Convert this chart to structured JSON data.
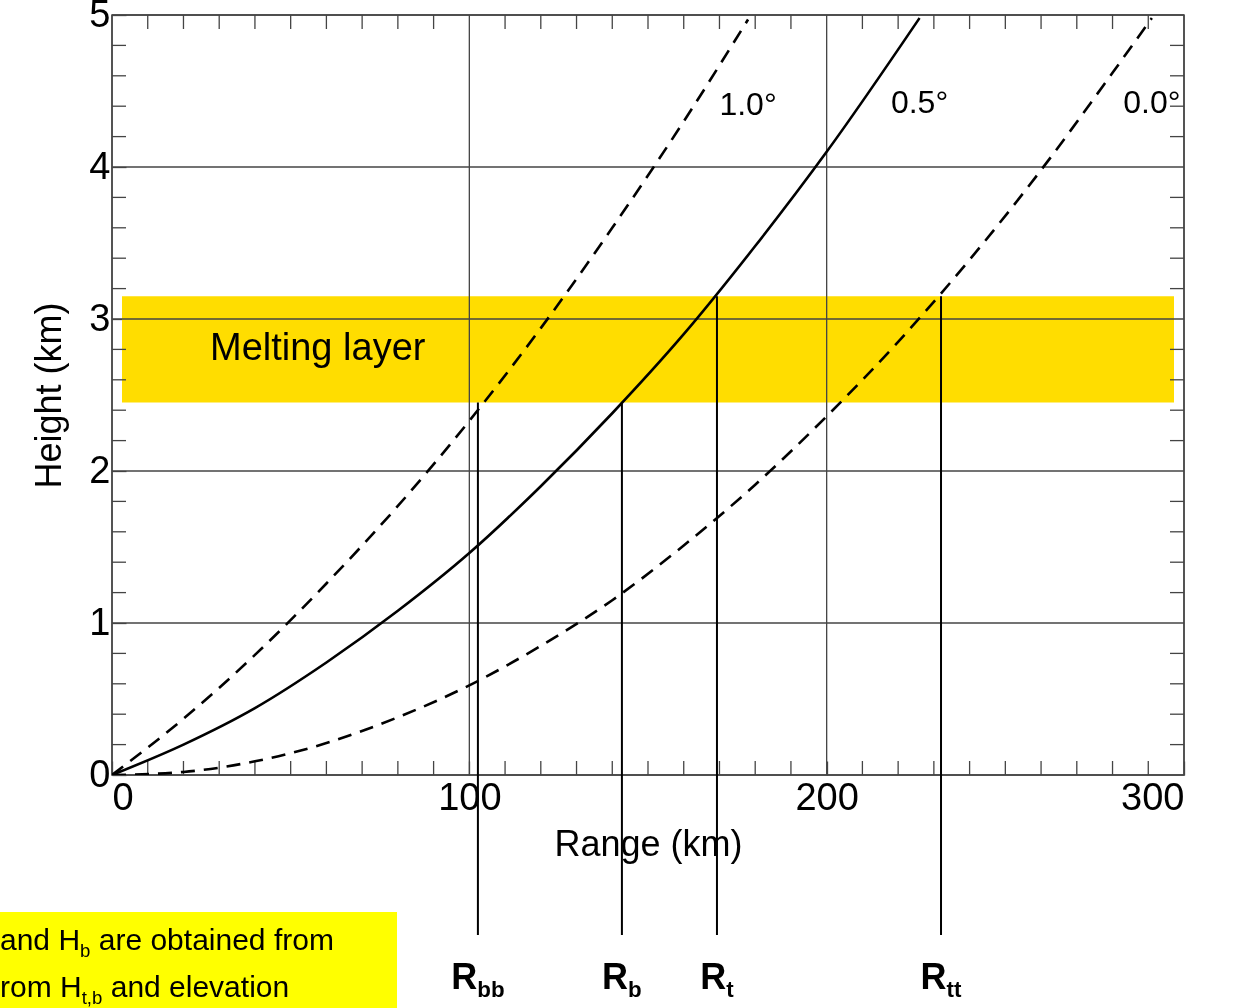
{
  "chart_data": {
    "type": "line",
    "xlabel": "Range (km)",
    "ylabel": "Height (km)",
    "xlim": [
      0,
      300
    ],
    "ylim": [
      0,
      5
    ],
    "xticks": [
      0,
      {
        "value": 10,
        "label": null
      },
      {
        "value": 20,
        "label": null
      },
      {
        "value": 30,
        "label": null
      },
      {
        "value": 40,
        "label": null
      },
      {
        "value": 50,
        "label": null
      },
      {
        "value": 60,
        "label": null
      },
      {
        "value": 70,
        "label": null
      },
      {
        "value": 80,
        "label": null
      },
      {
        "value": 90,
        "label": null
      },
      100,
      {
        "value": 110,
        "label": null
      },
      {
        "value": 120,
        "label": null
      },
      {
        "value": 130,
        "label": null
      },
      {
        "value": 140,
        "label": null
      },
      {
        "value": 150,
        "label": null
      },
      {
        "value": 160,
        "label": null
      },
      {
        "value": 170,
        "label": null
      },
      {
        "value": 180,
        "label": null
      },
      {
        "value": 190,
        "label": null
      },
      200,
      {
        "value": 210,
        "label": null
      },
      {
        "value": 220,
        "label": null
      },
      {
        "value": 230,
        "label": null
      },
      {
        "value": 240,
        "label": null
      },
      {
        "value": 250,
        "label": null
      },
      {
        "value": 260,
        "label": null
      },
      {
        "value": 270,
        "label": null
      },
      {
        "value": 280,
        "label": null
      },
      {
        "value": 290,
        "label": null
      },
      300
    ],
    "yticks": [
      0,
      {
        "value": 0.2,
        "label": null
      },
      {
        "value": 0.4,
        "label": null
      },
      {
        "value": 0.6,
        "label": null
      },
      {
        "value": 0.8,
        "label": null
      },
      1,
      {
        "value": 1.2,
        "label": null
      },
      {
        "value": 1.4,
        "label": null
      },
      {
        "value": 1.6,
        "label": null
      },
      {
        "value": 1.8,
        "label": null
      },
      2,
      {
        "value": 2.2,
        "label": null
      },
      {
        "value": 2.4,
        "label": null
      },
      {
        "value": 2.6,
        "label": null
      },
      {
        "value": 2.8,
        "label": null
      },
      3,
      {
        "value": 3.2,
        "label": null
      },
      {
        "value": 3.4,
        "label": null
      },
      {
        "value": 3.6,
        "label": null
      },
      {
        "value": 3.8,
        "label": null
      },
      4,
      {
        "value": 4.2,
        "label": null
      },
      {
        "value": 4.4,
        "label": null
      },
      {
        "value": 4.6,
        "label": null
      },
      {
        "value": 4.8,
        "label": null
      },
      5
    ],
    "grid": true,
    "series": [
      {
        "name": "1.0°",
        "color": "#000000",
        "line_style": "dashed",
        "x": [
          0,
          20,
          40,
          60,
          80,
          100,
          120,
          140,
          160,
          178
        ],
        "values": [
          0,
          0.37,
          0.79,
          1.26,
          1.77,
          2.33,
          2.94,
          3.6,
          4.3,
          4.97
        ]
      },
      {
        "name": "0.5°",
        "color": "#000000",
        "line_style": "solid",
        "x": [
          0,
          20,
          40,
          60,
          80,
          100,
          120,
          140,
          160,
          180,
          200,
          226
        ],
        "values": [
          0,
          0.2,
          0.44,
          0.74,
          1.08,
          1.46,
          1.9,
          2.38,
          2.9,
          3.48,
          4.1,
          4.98
        ]
      },
      {
        "name": "0.0°",
        "color": "#000000",
        "line_style": "dashed",
        "x": [
          0,
          20,
          40,
          60,
          80,
          100,
          120,
          140,
          160,
          180,
          200,
          220,
          240,
          260,
          280,
          291
        ],
        "values": [
          0,
          0.02,
          0.09,
          0.21,
          0.38,
          0.59,
          0.85,
          1.15,
          1.51,
          1.91,
          2.36,
          2.85,
          3.39,
          3.98,
          4.62,
          4.98
        ]
      }
    ],
    "bands": [
      {
        "axis": "y",
        "from": 2.45,
        "to": 3.15,
        "label": "Melting layer",
        "color": "#ffdd00"
      }
    ],
    "annotations": [
      {
        "text": "R$_{bb}$",
        "x": 102.4,
        "y": 2.45
      },
      {
        "text": "R$_{b}$",
        "x": 142.7,
        "y": 2.45
      },
      {
        "text": "R$_{t}$",
        "x": 169.3,
        "y": 3.15
      },
      {
        "text": "R$_{tt}$",
        "x": 232,
        "y": 3.15
      },
      "and H$_{b}$ are obtained from",
      "rom H$_{t,b}$ and elevation"
    ]
  }
}
